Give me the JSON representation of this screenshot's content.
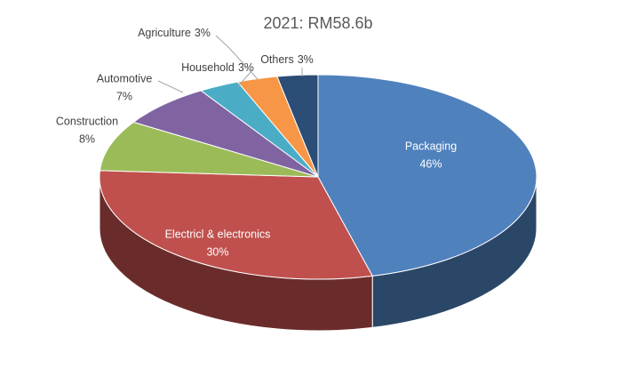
{
  "chart_data": {
    "type": "pie",
    "three_d": true,
    "title": "2021: RM58.6b",
    "categories": [
      "Packaging",
      "Electricl & electronics",
      "Construction",
      "Automotive",
      "Household",
      "Agriculture",
      "Others"
    ],
    "values": [
      46,
      30,
      8,
      7,
      3,
      3,
      3
    ],
    "value_labels": [
      "46%",
      "30%",
      "8%",
      "7%",
      "3%",
      "3%",
      "3%"
    ],
    "colors": [
      "#4f81bd",
      "#c0504d",
      "#9bbb59",
      "#8064a2",
      "#4bacc6",
      "#f79646",
      "#2c4d75"
    ]
  }
}
